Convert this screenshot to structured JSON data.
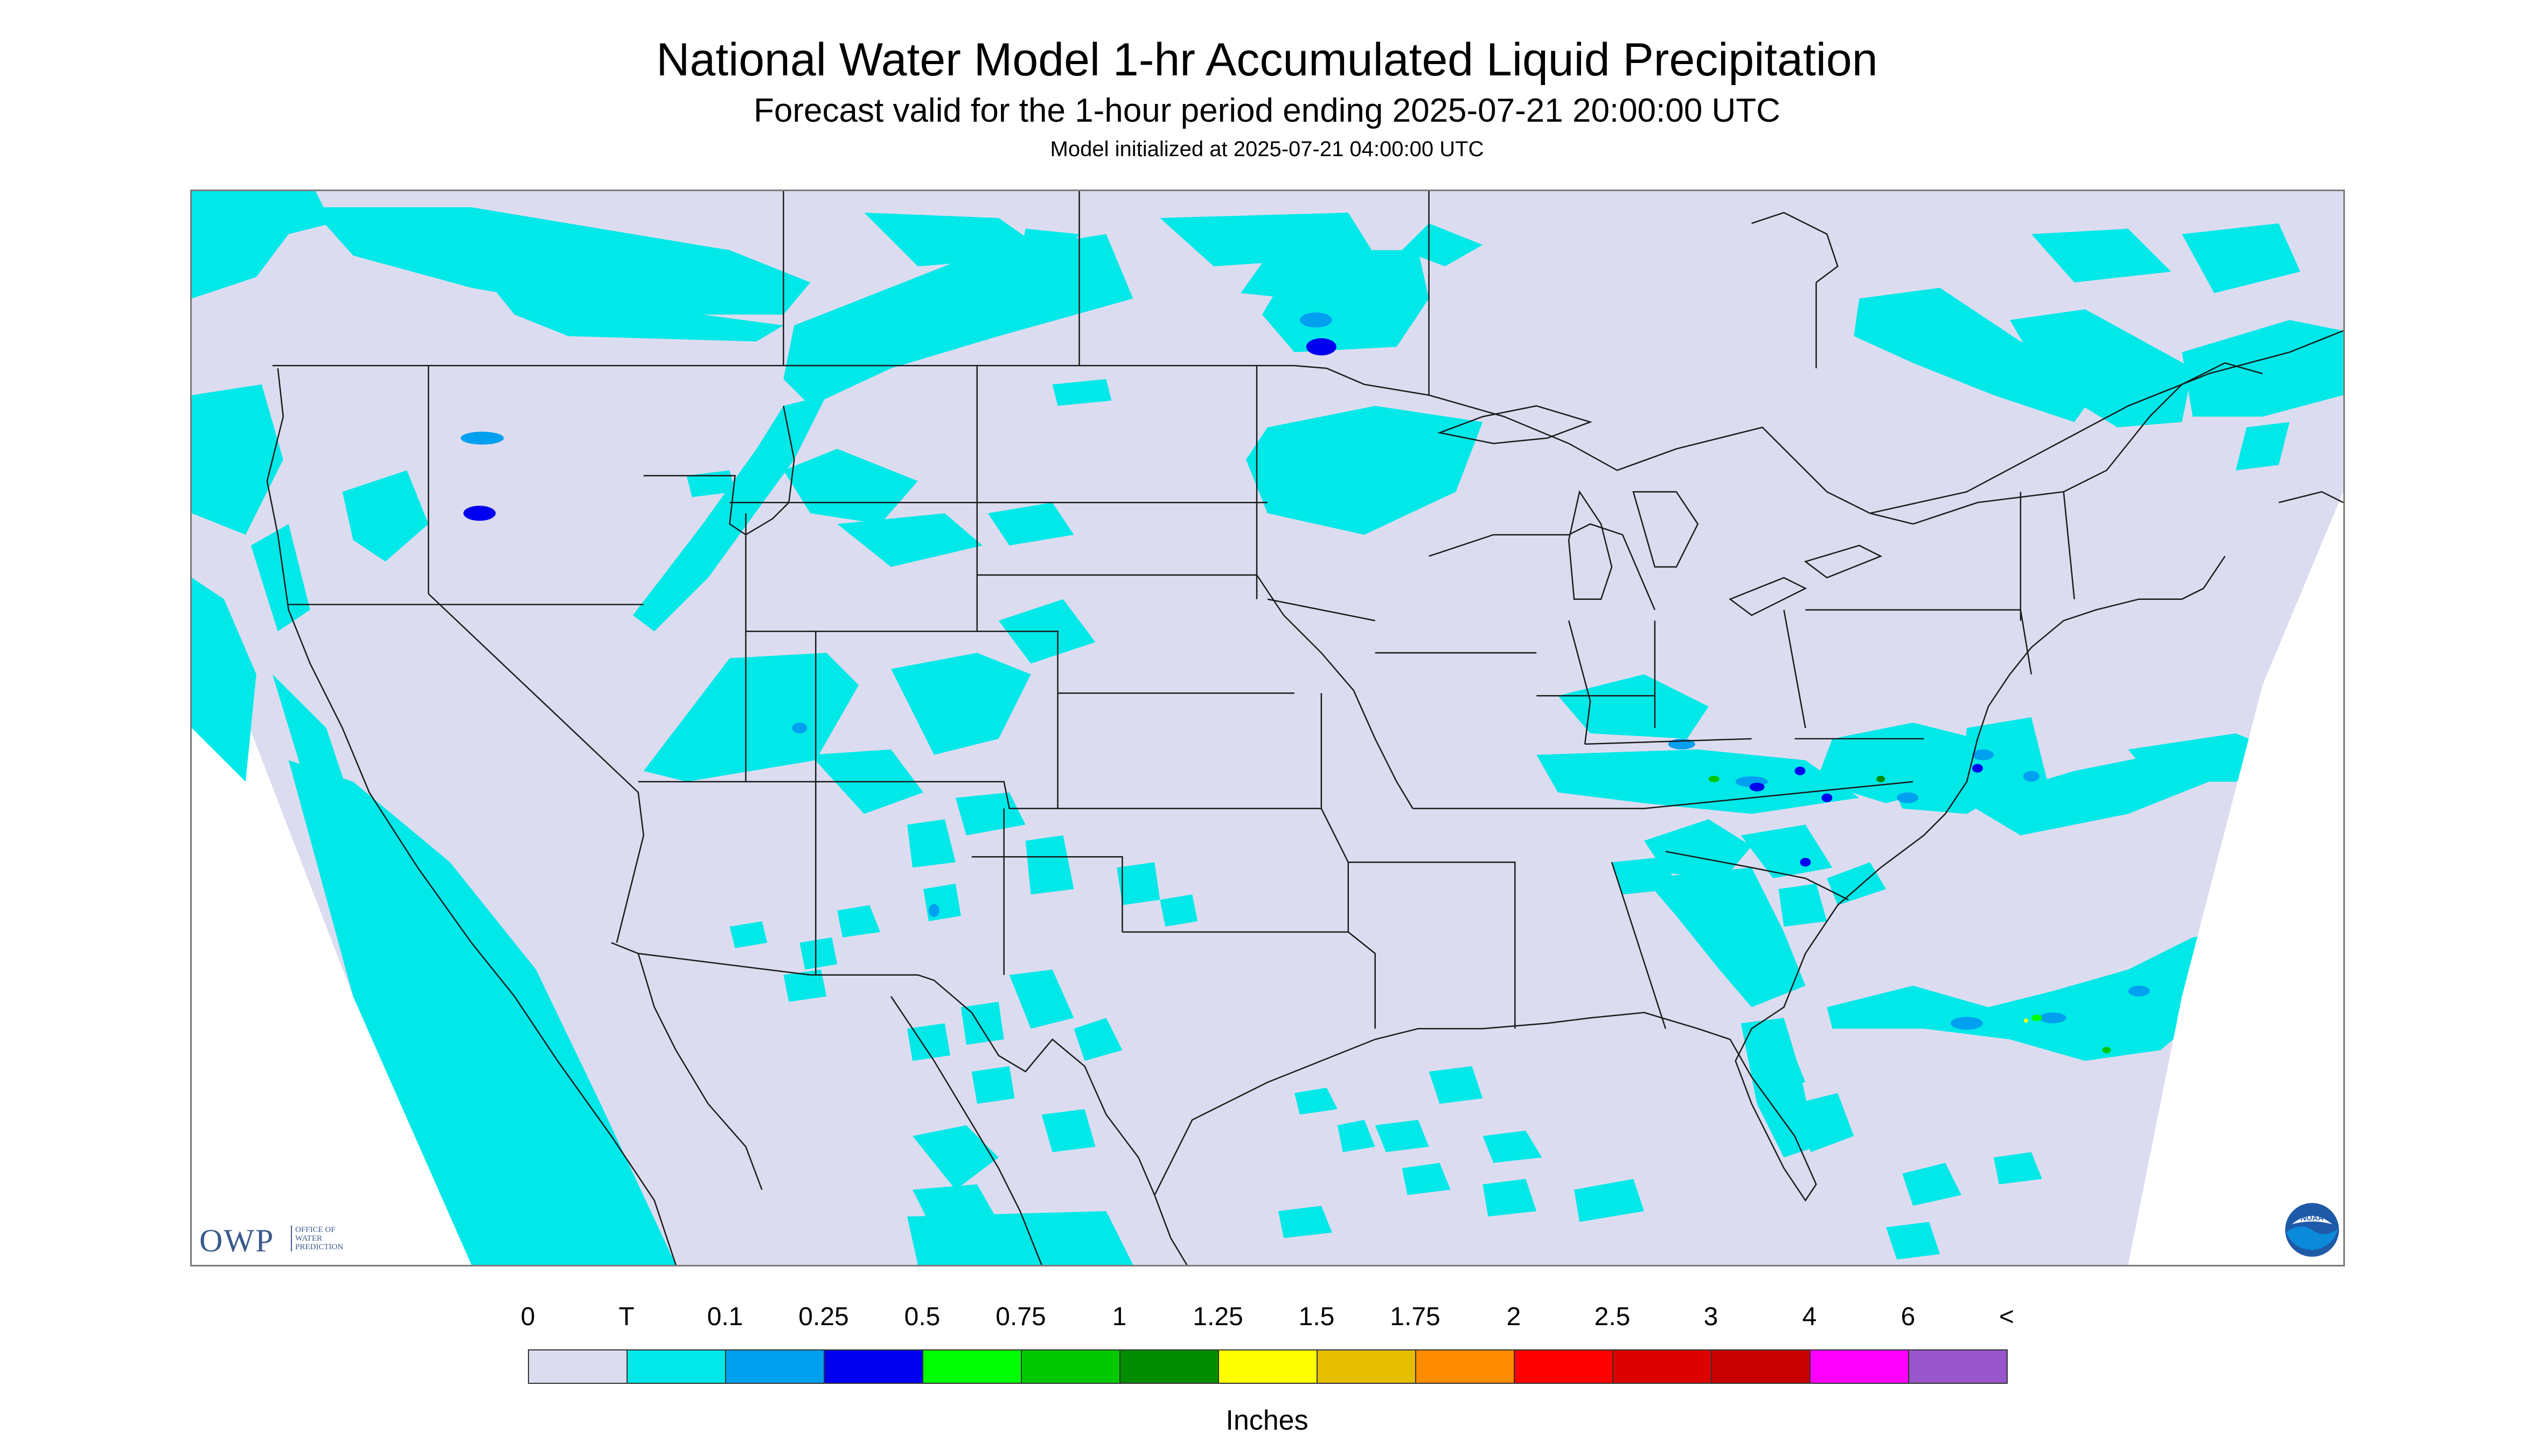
{
  "title": "National Water Model 1-hr Accumulated Liquid Precipitation",
  "subtitle": "Forecast valid for the 1-hour period ending 2025-07-21 20:00:00 UTC",
  "model_init": "Model initialized at 2025-07-21 04:00:00 UTC",
  "logos": {
    "owp_text": "OWP",
    "owp_sub": [
      "OFFICE OF",
      "WATER",
      "PREDICTION"
    ],
    "noaa_text": "NOAA"
  },
  "legend": {
    "units": "Inches",
    "labels": [
      "0",
      "T",
      "0.1",
      "0.25",
      "0.5",
      "0.75",
      "1",
      "1.25",
      "1.5",
      "1.75",
      "2",
      "2.5",
      "3",
      "4",
      "6",
      "<"
    ],
    "colors": [
      "#dcdcf0",
      "#00e8e8",
      "#00a0f0",
      "#0000f0",
      "#00ff00",
      "#00c800",
      "#008c00",
      "#ffff00",
      "#e6be00",
      "#ff8c00",
      "#ff0000",
      "#dc0000",
      "#c80000",
      "#ff00ff",
      "#9955cc"
    ]
  },
  "map": {
    "background_color": "#dcdcf0",
    "outside_domain_color": "#ffffff",
    "trace_color": "#00e8e8",
    "light_blue_color": "#00a0f0",
    "boundary_color": "#1a1a1a"
  }
}
